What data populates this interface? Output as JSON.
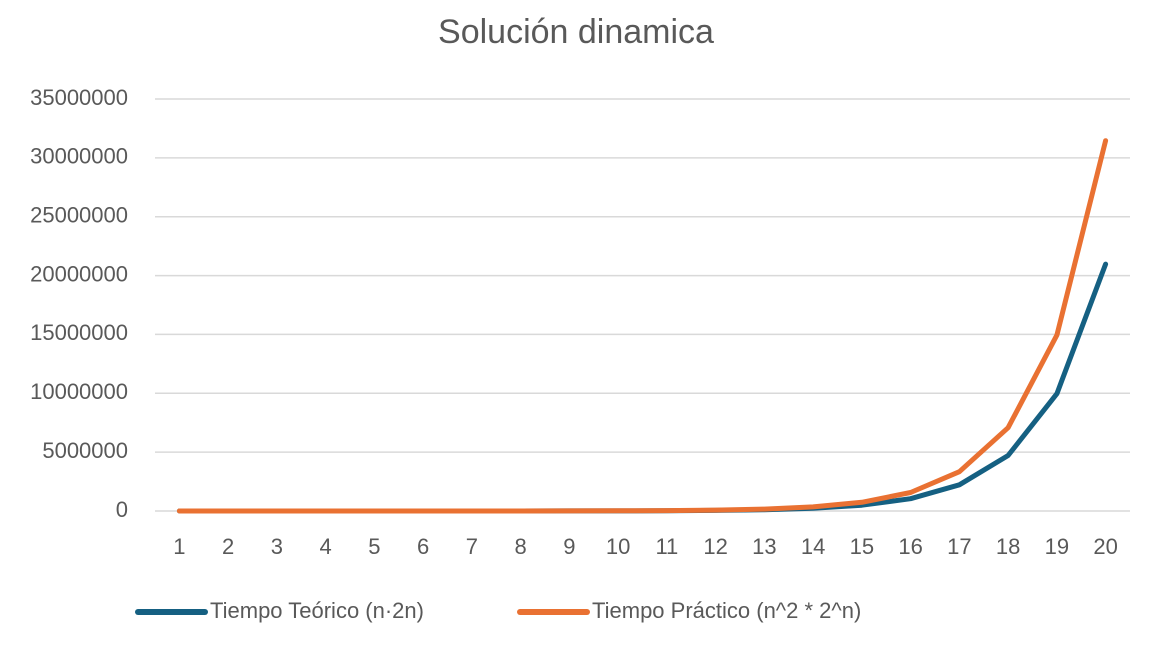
{
  "chart_data": {
    "type": "line",
    "title": "Solución dinamica",
    "categories": [
      "1",
      "2",
      "3",
      "4",
      "5",
      "6",
      "7",
      "8",
      "9",
      "10",
      "11",
      "12",
      "13",
      "14",
      "15",
      "16",
      "17",
      "18",
      "19",
      "20"
    ],
    "series": [
      {
        "name": "Tiempo Teórico (n·2n)",
        "color": "#156082",
        "values": [
          2,
          8,
          24,
          64,
          160,
          384,
          896,
          2048,
          4608,
          10240,
          22528,
          49152,
          106496,
          229376,
          491520,
          1048576,
          2228224,
          4718592,
          9961472,
          20971520
        ]
      },
      {
        "name": "Tiempo Práctico (n^2 * 2^n)",
        "color": "#e97132",
        "values": [
          3,
          12,
          36,
          96,
          240,
          576,
          1344,
          3072,
          6912,
          15360,
          33792,
          73728,
          159744,
          344064,
          737280,
          1572864,
          3342336,
          7077888,
          14942208,
          31457280
        ]
      }
    ],
    "ylim": [
      0,
      35000000
    ],
    "yticks": [
      0,
      5000000,
      10000000,
      15000000,
      20000000,
      25000000,
      30000000,
      35000000
    ],
    "grid": true,
    "legend": "bottom"
  }
}
